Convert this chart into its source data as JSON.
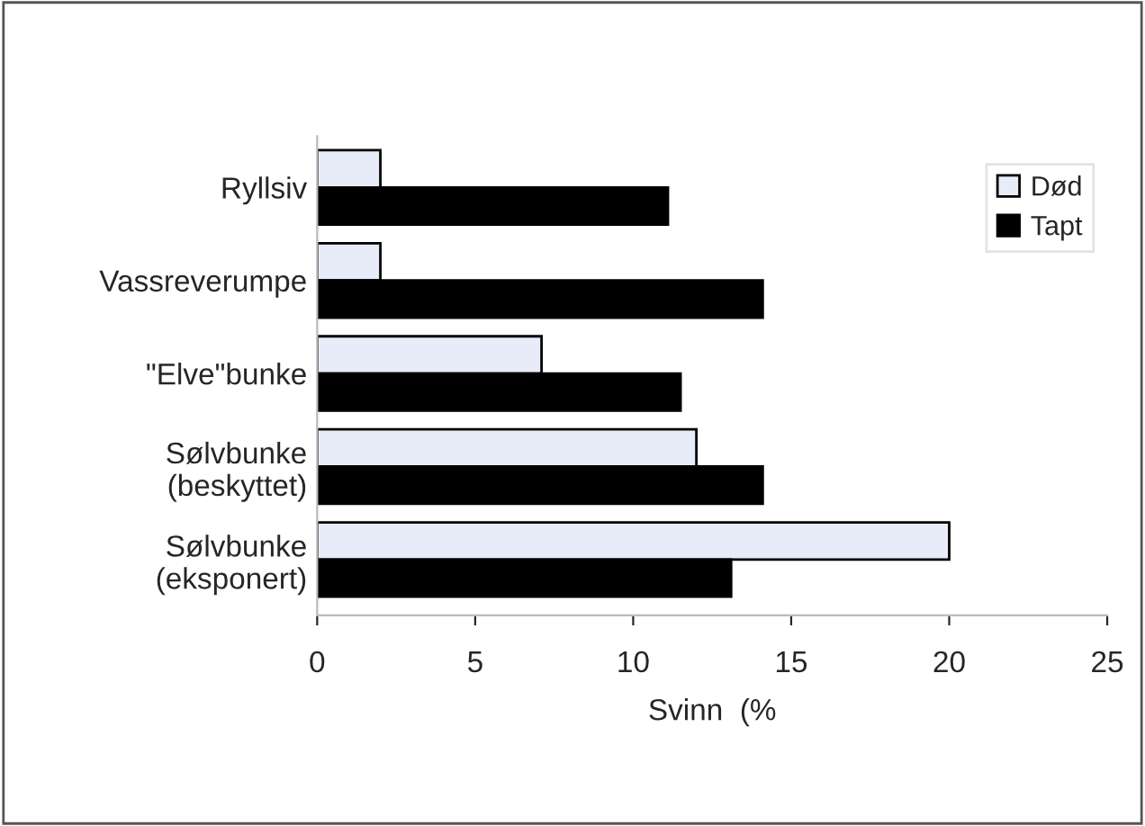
{
  "chart_data": {
    "type": "bar",
    "orientation": "horizontal",
    "xlabel": "Svinn  (%",
    "categories": [
      "Ryllsiv",
      "Vassreverumpe",
      "\"Elve\"bunke",
      "Sølvbunke\n(beskyttet)",
      "Sølvbunke\n(eksponert)"
    ],
    "series": [
      {
        "name": "Død",
        "color": "#e8ecf8",
        "values": [
          2,
          2,
          7.1,
          12,
          20
        ]
      },
      {
        "name": "Tapt",
        "color": "#000000",
        "values": [
          11.1,
          14.1,
          11.5,
          14.1,
          13.1
        ]
      }
    ],
    "xlim": [
      0,
      25
    ],
    "xticks": [
      0,
      5,
      10,
      15,
      20,
      25
    ],
    "grid": false,
    "legend": "top right"
  }
}
